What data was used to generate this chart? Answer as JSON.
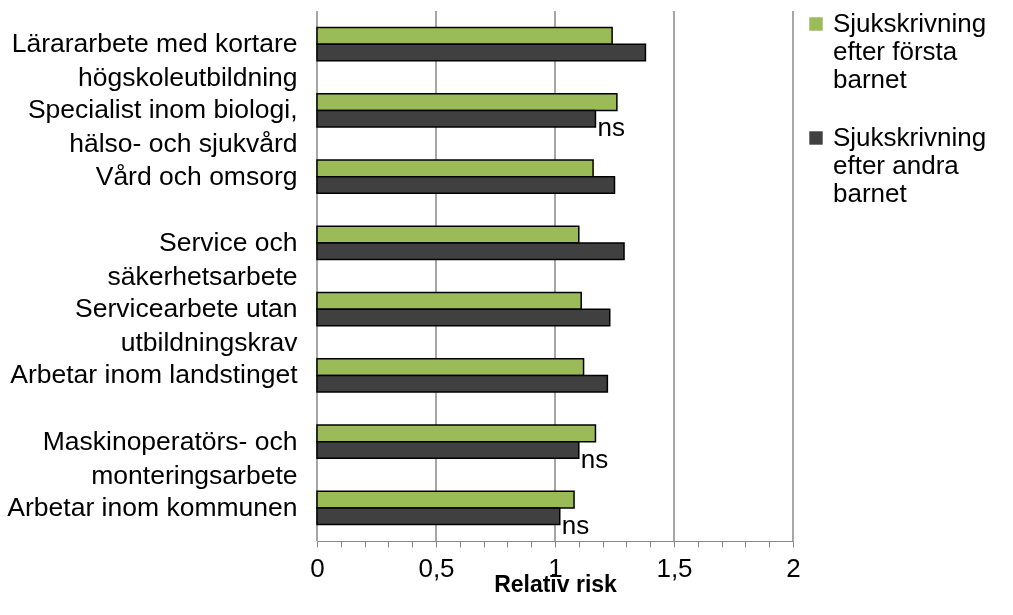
{
  "chart_data": {
    "type": "bar",
    "orientation": "horizontal",
    "xlabel": "Relativ risk",
    "categories": [
      "Lärararbete med kortare högskoleutbildning",
      "Specialist inom biologi, hälso- och sjukvård",
      "Vård och omsorg",
      "Service och säkerhetsarbete",
      "Servicearbete utan utbildningskrav",
      "Arbetar inom landstinget",
      "Maskinoperatörs- och monteringsarbete",
      "Arbetar inom kommunen"
    ],
    "series": [
      {
        "name": "Sjukskrivning efter första barnet",
        "color": "#9bbb59",
        "values": [
          1.24,
          1.26,
          1.16,
          1.1,
          1.11,
          1.12,
          1.17,
          1.08
        ]
      },
      {
        "name": "Sjukskrivning efter andra barnet",
        "color": "#404040",
        "values": [
          1.38,
          1.17,
          1.25,
          1.29,
          1.23,
          1.22,
          1.1,
          1.02
        ]
      }
    ],
    "xlim": [
      0,
      2
    ],
    "xticks": [
      0,
      {
        "value": 0.1,
        "label": null
      },
      {
        "value": 0.2,
        "label": null
      },
      {
        "value": 0.3,
        "label": null
      },
      {
        "value": 0.4,
        "label": null
      },
      {
        "value": 0.5,
        "label": "0,5"
      },
      {
        "value": 0.6,
        "label": null
      },
      {
        "value": 0.7,
        "label": null
      },
      {
        "value": 0.8,
        "label": null
      },
      {
        "value": 0.9,
        "label": null
      },
      1,
      {
        "value": 1.1,
        "label": null
      },
      {
        "value": 1.2,
        "label": null
      },
      {
        "value": 1.3,
        "label": null
      },
      {
        "value": 1.4,
        "label": null
      },
      {
        "value": 1.5,
        "label": "1,5"
      },
      {
        "value": 1.6,
        "label": null
      },
      {
        "value": 1.7,
        "label": null
      },
      {
        "value": 1.8,
        "label": null
      },
      {
        "value": 1.9,
        "label": null
      },
      2
    ],
    "grid": "x",
    "legend": "right",
    "annotations": [
      {
        "text": "ns",
        "x": 1.17,
        "y": "Specialist inom biologi, hälso- och sjukvård"
      },
      {
        "text": "ns",
        "x": 1.1,
        "y": "Maskinoperatörs- och monteringsarbete"
      },
      {
        "text": "ns",
        "x": 1.02,
        "y": "Arbetar inom kommunen"
      }
    ]
  }
}
